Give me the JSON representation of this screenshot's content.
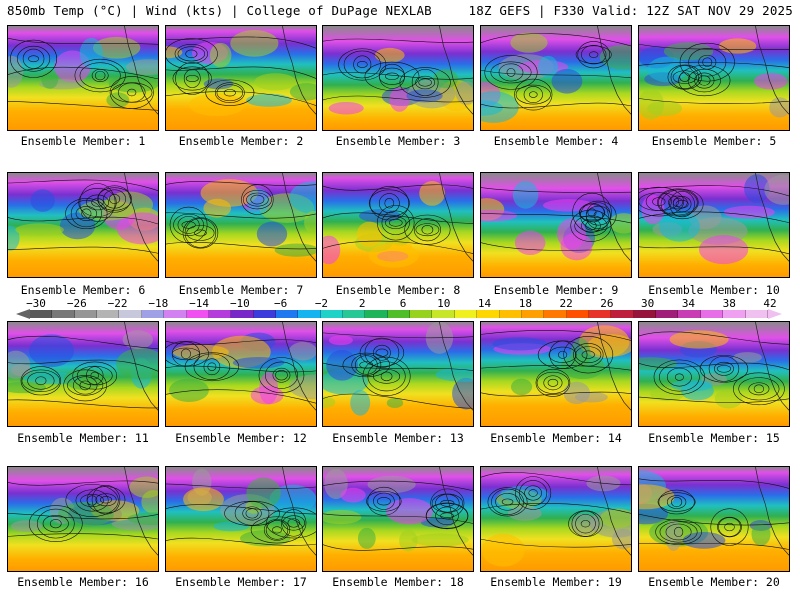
{
  "header": {
    "left": "850mb Temp (°C) | Wind (kts) | College of DuPage NEXLAB",
    "right": "18Z GEFS | F330 Valid: 12Z SAT NOV 29 2025"
  },
  "colorbar": {
    "ticks": [
      "−30",
      "−26",
      "−22",
      "−18",
      "−14",
      "−10",
      "−6",
      "−2",
      "2",
      "6",
      "10",
      "14",
      "18",
      "22",
      "26",
      "30",
      "34",
      "38",
      "42"
    ],
    "colors": [
      "#5a5a5a",
      "#787878",
      "#969696",
      "#b4b4b4",
      "#c8c8dc",
      "#a0a0e6",
      "#d282f0",
      "#f050f0",
      "#b43cdc",
      "#7828c8",
      "#3c3cdc",
      "#1e78f0",
      "#14b4f0",
      "#1ed2c8",
      "#28c896",
      "#1eb45a",
      "#50be28",
      "#96d21e",
      "#c8e628",
      "#f0f01e",
      "#ffd700",
      "#ffbe00",
      "#ffa000",
      "#ff7800",
      "#ff5000",
      "#e63228",
      "#be1e3c",
      "#96143c",
      "#a01e78",
      "#c83cb4",
      "#e66ee6",
      "#f0a0f0",
      "#f0c0f0"
    ]
  },
  "members": [
    {
      "label": "Ensemble Member: 1"
    },
    {
      "label": "Ensemble Member: 2"
    },
    {
      "label": "Ensemble Member: 3"
    },
    {
      "label": "Ensemble Member: 4"
    },
    {
      "label": "Ensemble Member: 5"
    },
    {
      "label": "Ensemble Member: 6"
    },
    {
      "label": "Ensemble Member: 7"
    },
    {
      "label": "Ensemble Member: 8"
    },
    {
      "label": "Ensemble Member: 9"
    },
    {
      "label": "Ensemble Member: 10"
    },
    {
      "label": "Ensemble Member: 11"
    },
    {
      "label": "Ensemble Member: 12"
    },
    {
      "label": "Ensemble Member: 13"
    },
    {
      "label": "Ensemble Member: 14"
    },
    {
      "label": "Ensemble Member: 15"
    },
    {
      "label": "Ensemble Member: 16"
    },
    {
      "label": "Ensemble Member: 17"
    },
    {
      "label": "Ensemble Member: 18"
    },
    {
      "label": "Ensemble Member: 19"
    },
    {
      "label": "Ensemble Member: 20"
    }
  ]
}
